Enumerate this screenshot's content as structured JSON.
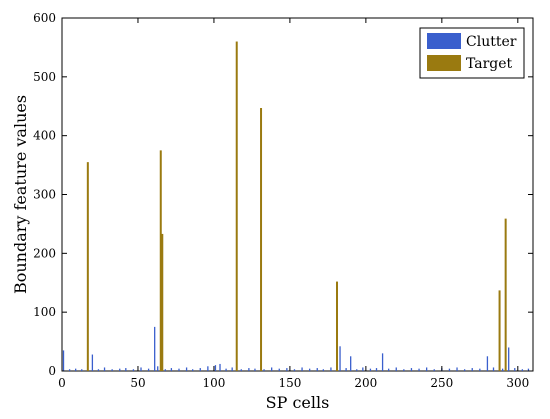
{
  "chart_data": {
    "type": "bar",
    "title": "",
    "xlabel": "SP cells",
    "ylabel": "Boundary feature values",
    "xlim": [
      0,
      310
    ],
    "ylim": [
      0,
      600
    ],
    "xticks": [
      0,
      50,
      100,
      150,
      200,
      250,
      300
    ],
    "yticks": [
      0,
      100,
      200,
      300,
      400,
      500,
      600
    ],
    "grid": false,
    "legend_position": "top-right",
    "series": [
      {
        "name": "Clutter",
        "color": "#3a5fcd",
        "points": [
          [
            1,
            35
          ],
          [
            5,
            3
          ],
          [
            9,
            4
          ],
          [
            13,
            3
          ],
          [
            17,
            5
          ],
          [
            20,
            28
          ],
          [
            24,
            3
          ],
          [
            28,
            6
          ],
          [
            33,
            3
          ],
          [
            38,
            4
          ],
          [
            42,
            5
          ],
          [
            47,
            3
          ],
          [
            52,
            6
          ],
          [
            57,
            4
          ],
          [
            61,
            75
          ],
          [
            63,
            8
          ],
          [
            68,
            3
          ],
          [
            72,
            5
          ],
          [
            77,
            4
          ],
          [
            82,
            6
          ],
          [
            86,
            3
          ],
          [
            91,
            5
          ],
          [
            96,
            8
          ],
          [
            101,
            10
          ],
          [
            104,
            12
          ],
          [
            108,
            4
          ],
          [
            112,
            6
          ],
          [
            118,
            3
          ],
          [
            123,
            5
          ],
          [
            127,
            4
          ],
          [
            133,
            3
          ],
          [
            138,
            6
          ],
          [
            143,
            4
          ],
          [
            148,
            5
          ],
          [
            153,
            3
          ],
          [
            158,
            6
          ],
          [
            163,
            4
          ],
          [
            168,
            5
          ],
          [
            172,
            3
          ],
          [
            177,
            6
          ],
          [
            183,
            42
          ],
          [
            187,
            5
          ],
          [
            190,
            25
          ],
          [
            194,
            3
          ],
          [
            198,
            6
          ],
          [
            203,
            4
          ],
          [
            207,
            5
          ],
          [
            211,
            30
          ],
          [
            215,
            4
          ],
          [
            220,
            6
          ],
          [
            225,
            3
          ],
          [
            230,
            5
          ],
          [
            235,
            4
          ],
          [
            240,
            6
          ],
          [
            245,
            3
          ],
          [
            250,
            5
          ],
          [
            255,
            4
          ],
          [
            260,
            6
          ],
          [
            265,
            3
          ],
          [
            270,
            5
          ],
          [
            275,
            4
          ],
          [
            280,
            25
          ],
          [
            284,
            6
          ],
          [
            290,
            4
          ],
          [
            294,
            40
          ],
          [
            298,
            5
          ],
          [
            303,
            3
          ],
          [
            307,
            4
          ]
        ]
      },
      {
        "name": "Target",
        "color": "#9a7a10",
        "points": [
          [
            17,
            355
          ],
          [
            65,
            375
          ],
          [
            66,
            233
          ],
          [
            115,
            560
          ],
          [
            131,
            447
          ],
          [
            181,
            152
          ],
          [
            288,
            137
          ],
          [
            292,
            259
          ]
        ]
      }
    ]
  }
}
